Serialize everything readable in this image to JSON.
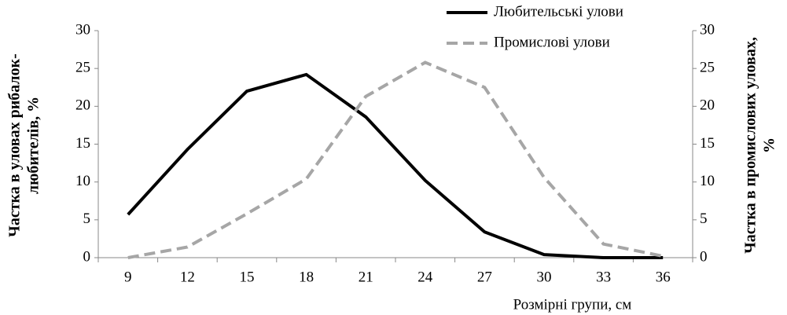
{
  "chart_data": {
    "type": "line",
    "categories": [
      "9",
      "12",
      "15",
      "18",
      "21",
      "24",
      "27",
      "30",
      "33",
      "36"
    ],
    "xlabel": "Розмірні групи, см",
    "ylabel": [
      "Частка в уловах рибалок-",
      "любителів, %"
    ],
    "y2label": [
      "Частка в промислових уловах,",
      "%"
    ],
    "ylim": [
      0,
      30
    ],
    "yticks": [
      0,
      5,
      10,
      15,
      20,
      25,
      30
    ],
    "y2lim": [
      0,
      30
    ],
    "y2ticks": [
      0,
      5,
      10,
      15,
      20,
      25,
      30
    ],
    "legend": "top",
    "series": [
      {
        "name": "Любительські улови",
        "color": "#000000",
        "dash": false,
        "values": [
          5.7,
          14.3,
          22,
          24.2,
          18.6,
          10.2,
          3.4,
          0.4,
          0,
          0
        ]
      },
      {
        "name": "Промислові улови",
        "color": "#a6a6a6",
        "dash": true,
        "axis": "y2",
        "values": [
          0,
          1.4,
          5.8,
          10.4,
          21.3,
          25.8,
          22.5,
          10.6,
          1.8,
          0.2
        ]
      }
    ]
  }
}
